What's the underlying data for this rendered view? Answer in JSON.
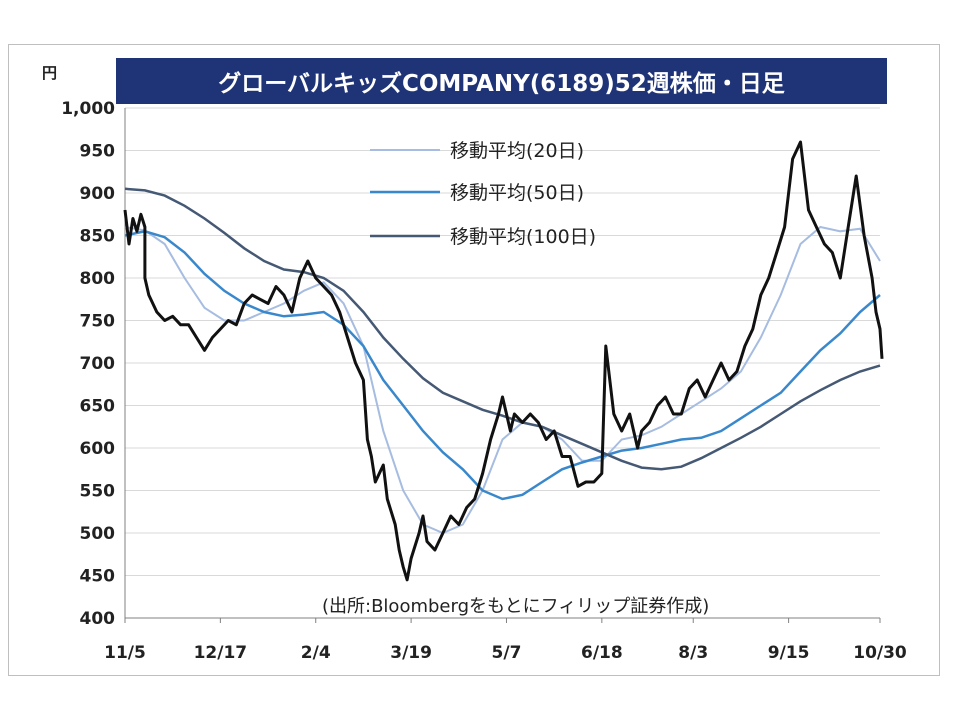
{
  "chart_data": {
    "type": "line",
    "title": "グローバルキッズCOMPANY(6189)52週株価・日足",
    "yunit": "円",
    "ylim": [
      400,
      1000
    ],
    "yticks": [
      400,
      450,
      500,
      550,
      600,
      650,
      700,
      750,
      800,
      850,
      900,
      950,
      1000
    ],
    "ytick_labels": [
      "400",
      "450",
      "500",
      "550",
      "600",
      "650",
      "700",
      "750",
      "800",
      "850",
      "900",
      "950",
      "1,000"
    ],
    "x_categories": [
      "11/5",
      "12/17",
      "2/4",
      "3/19",
      "5/7",
      "6/18",
      "8/3",
      "9/15",
      "10/30"
    ],
    "grid": "horizontal",
    "legend_position": "top-center",
    "source": "(出所:Bloombergをもとにフィリップ証券作成)",
    "price": {
      "name": "",
      "points": [
        [
          0.0,
          880
        ],
        [
          0.1,
          840
        ],
        [
          0.2,
          870
        ],
        [
          0.3,
          855
        ],
        [
          0.4,
          875
        ],
        [
          0.5,
          860
        ],
        [
          0.5,
          800
        ],
        [
          0.6,
          780
        ],
        [
          0.7,
          770
        ],
        [
          0.8,
          760
        ],
        [
          1.0,
          750
        ],
        [
          1.2,
          755
        ],
        [
          1.4,
          745
        ],
        [
          1.6,
          745
        ],
        [
          1.8,
          730
        ],
        [
          2.0,
          715
        ],
        [
          2.2,
          730
        ],
        [
          2.4,
          740
        ],
        [
          2.6,
          750
        ],
        [
          2.8,
          745
        ],
        [
          3.0,
          770
        ],
        [
          3.2,
          780
        ],
        [
          3.4,
          775
        ],
        [
          3.6,
          770
        ],
        [
          3.8,
          790
        ],
        [
          4.0,
          780
        ],
        [
          4.2,
          760
        ],
        [
          4.4,
          800
        ],
        [
          4.6,
          820
        ],
        [
          4.8,
          800
        ],
        [
          5.0,
          790
        ],
        [
          5.2,
          780
        ],
        [
          5.4,
          760
        ],
        [
          5.6,
          730
        ],
        [
          5.8,
          700
        ],
        [
          6.0,
          680
        ],
        [
          6.1,
          610
        ],
        [
          6.2,
          590
        ],
        [
          6.3,
          560
        ],
        [
          6.5,
          580
        ],
        [
          6.6,
          540
        ],
        [
          6.8,
          510
        ],
        [
          6.9,
          480
        ],
        [
          7.0,
          460
        ],
        [
          7.1,
          445
        ],
        [
          7.2,
          470
        ],
        [
          7.4,
          500
        ],
        [
          7.5,
          520
        ],
        [
          7.6,
          490
        ],
        [
          7.8,
          480
        ],
        [
          8.0,
          500
        ],
        [
          8.2,
          520
        ],
        [
          8.4,
          510
        ],
        [
          8.6,
          530
        ],
        [
          8.8,
          540
        ],
        [
          9.0,
          570
        ],
        [
          9.2,
          610
        ],
        [
          9.4,
          640
        ],
        [
          9.5,
          660
        ],
        [
          9.6,
          640
        ],
        [
          9.7,
          620
        ],
        [
          9.8,
          640
        ],
        [
          10.0,
          630
        ],
        [
          10.2,
          640
        ],
        [
          10.4,
          630
        ],
        [
          10.6,
          610
        ],
        [
          10.8,
          620
        ],
        [
          11.0,
          590
        ],
        [
          11.2,
          590
        ],
        [
          11.4,
          555
        ],
        [
          11.6,
          560
        ],
        [
          11.8,
          560
        ],
        [
          12.0,
          570
        ],
        [
          12.1,
          720
        ],
        [
          12.2,
          680
        ],
        [
          12.3,
          640
        ],
        [
          12.5,
          620
        ],
        [
          12.7,
          640
        ],
        [
          12.9,
          600
        ],
        [
          13.0,
          620
        ],
        [
          13.2,
          630
        ],
        [
          13.4,
          650
        ],
        [
          13.6,
          660
        ],
        [
          13.8,
          640
        ],
        [
          14.0,
          640
        ],
        [
          14.2,
          670
        ],
        [
          14.4,
          680
        ],
        [
          14.6,
          660
        ],
        [
          14.8,
          680
        ],
        [
          15.0,
          700
        ],
        [
          15.2,
          680
        ],
        [
          15.4,
          690
        ],
        [
          15.6,
          720
        ],
        [
          15.8,
          740
        ],
        [
          16.0,
          780
        ],
        [
          16.2,
          800
        ],
        [
          16.4,
          830
        ],
        [
          16.6,
          860
        ],
        [
          16.8,
          940
        ],
        [
          17.0,
          960
        ],
        [
          17.2,
          880
        ],
        [
          17.4,
          860
        ],
        [
          17.6,
          840
        ],
        [
          17.8,
          830
        ],
        [
          18.0,
          800
        ],
        [
          18.2,
          860
        ],
        [
          18.4,
          920
        ],
        [
          18.6,
          850
        ],
        [
          18.8,
          800
        ],
        [
          18.9,
          760
        ],
        [
          19.0,
          740
        ],
        [
          19.05,
          705
        ]
      ]
    },
    "series": [
      {
        "name": "移動平均(20日)",
        "color": "#a6bce0",
        "points": [
          [
            0.0,
            860
          ],
          [
            0.5,
            856
          ],
          [
            1.0,
            840
          ],
          [
            1.5,
            800
          ],
          [
            2.0,
            765
          ],
          [
            2.5,
            750
          ],
          [
            3.0,
            750
          ],
          [
            3.5,
            760
          ],
          [
            4.0,
            770
          ],
          [
            4.5,
            785
          ],
          [
            5.0,
            795
          ],
          [
            5.5,
            770
          ],
          [
            6.0,
            720
          ],
          [
            6.5,
            620
          ],
          [
            7.0,
            550
          ],
          [
            7.5,
            510
          ],
          [
            8.0,
            500
          ],
          [
            8.5,
            510
          ],
          [
            9.0,
            550
          ],
          [
            9.5,
            610
          ],
          [
            10.0,
            630
          ],
          [
            10.5,
            625
          ],
          [
            11.0,
            610
          ],
          [
            11.5,
            585
          ],
          [
            12.0,
            585
          ],
          [
            12.5,
            610
          ],
          [
            13.0,
            615
          ],
          [
            13.5,
            625
          ],
          [
            14.0,
            640
          ],
          [
            14.5,
            655
          ],
          [
            15.0,
            670
          ],
          [
            15.5,
            690
          ],
          [
            16.0,
            730
          ],
          [
            16.5,
            780
          ],
          [
            17.0,
            840
          ],
          [
            17.5,
            860
          ],
          [
            18.0,
            855
          ],
          [
            18.5,
            858
          ],
          [
            19.0,
            820
          ]
        ]
      },
      {
        "name": "移動平均(50日)",
        "color": "#3a88cc",
        "points": [
          [
            0.0,
            850
          ],
          [
            0.5,
            855
          ],
          [
            1.0,
            848
          ],
          [
            1.5,
            830
          ],
          [
            2.0,
            805
          ],
          [
            2.5,
            785
          ],
          [
            3.0,
            770
          ],
          [
            3.5,
            760
          ],
          [
            4.0,
            755
          ],
          [
            4.5,
            757
          ],
          [
            5.0,
            760
          ],
          [
            5.5,
            745
          ],
          [
            6.0,
            720
          ],
          [
            6.5,
            680
          ],
          [
            7.0,
            650
          ],
          [
            7.5,
            620
          ],
          [
            8.0,
            595
          ],
          [
            8.5,
            575
          ],
          [
            9.0,
            550
          ],
          [
            9.5,
            540
          ],
          [
            10.0,
            545
          ],
          [
            10.5,
            560
          ],
          [
            11.0,
            575
          ],
          [
            11.5,
            583
          ],
          [
            12.0,
            590
          ],
          [
            12.5,
            597
          ],
          [
            13.0,
            600
          ],
          [
            13.5,
            605
          ],
          [
            14.0,
            610
          ],
          [
            14.5,
            612
          ],
          [
            15.0,
            620
          ],
          [
            15.5,
            635
          ],
          [
            16.0,
            650
          ],
          [
            16.5,
            665
          ],
          [
            17.0,
            690
          ],
          [
            17.5,
            715
          ],
          [
            18.0,
            735
          ],
          [
            18.5,
            760
          ],
          [
            19.0,
            780
          ]
        ]
      },
      {
        "name": "移動平均(100日)",
        "color": "#455975",
        "points": [
          [
            0.0,
            905
          ],
          [
            0.5,
            903
          ],
          [
            1.0,
            897
          ],
          [
            1.5,
            885
          ],
          [
            2.0,
            870
          ],
          [
            2.5,
            853
          ],
          [
            3.0,
            835
          ],
          [
            3.5,
            820
          ],
          [
            4.0,
            810
          ],
          [
            4.5,
            807
          ],
          [
            5.0,
            800
          ],
          [
            5.5,
            785
          ],
          [
            6.0,
            760
          ],
          [
            6.5,
            730
          ],
          [
            7.0,
            705
          ],
          [
            7.5,
            682
          ],
          [
            8.0,
            665
          ],
          [
            8.5,
            655
          ],
          [
            9.0,
            645
          ],
          [
            9.5,
            638
          ],
          [
            10.0,
            630
          ],
          [
            10.5,
            625
          ],
          [
            11.0,
            615
          ],
          [
            11.5,
            605
          ],
          [
            12.0,
            595
          ],
          [
            12.5,
            585
          ],
          [
            13.0,
            577
          ],
          [
            13.5,
            575
          ],
          [
            14.0,
            578
          ],
          [
            14.5,
            588
          ],
          [
            15.0,
            600
          ],
          [
            15.5,
            612
          ],
          [
            16.0,
            625
          ],
          [
            16.5,
            640
          ],
          [
            17.0,
            655
          ],
          [
            17.5,
            668
          ],
          [
            18.0,
            680
          ],
          [
            18.5,
            690
          ],
          [
            19.0,
            697
          ]
        ]
      }
    ],
    "x_tick_positions": [
      0,
      2.4,
      4.8,
      7.2,
      9.6,
      12.0,
      14.3,
      16.7,
      19.0
    ]
  }
}
